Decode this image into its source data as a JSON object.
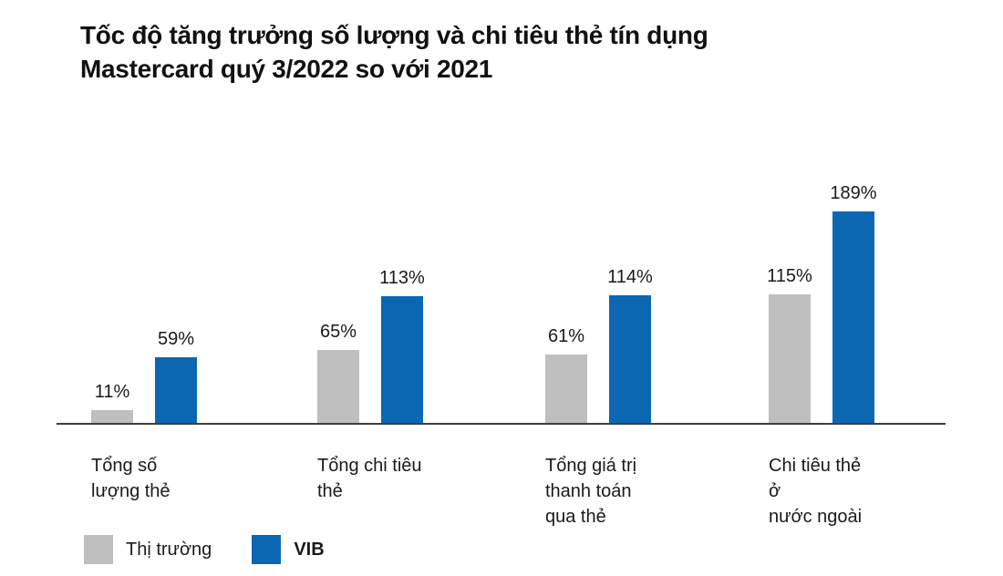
{
  "title": {
    "line1": "Tốc độ tăng trưởng số lượng và chi tiêu thẻ tín dụng",
    "line2": "Mastercard quý 3/2022 so với 2021"
  },
  "chart_data": {
    "type": "bar",
    "title": "Tốc độ tăng trưởng số lượng và chi tiêu thẻ tín dụng Mastercard quý 3/2022 so với 2021",
    "value_unit": "%",
    "categories": [
      "Tổng số lượng thẻ",
      "Tổng chi tiêu thẻ",
      "Tổng giá trị\nthanh toán qua thẻ",
      "Chi tiêu thẻ ở\nnước ngoài"
    ],
    "series": [
      {
        "name": "Thị trường",
        "color": "#bfbfbf",
        "values": [
          11,
          65,
          61,
          115
        ]
      },
      {
        "name": "VIB",
        "color": "#0b67b2",
        "values": [
          59,
          113,
          114,
          189
        ]
      }
    ],
    "ylim": [
      0,
      189
    ],
    "y_axis_visible": false,
    "x_axis_line_color": "#404040",
    "data_labels": "above-bars",
    "legend_position": "bottom-left",
    "grid": false
  }
}
